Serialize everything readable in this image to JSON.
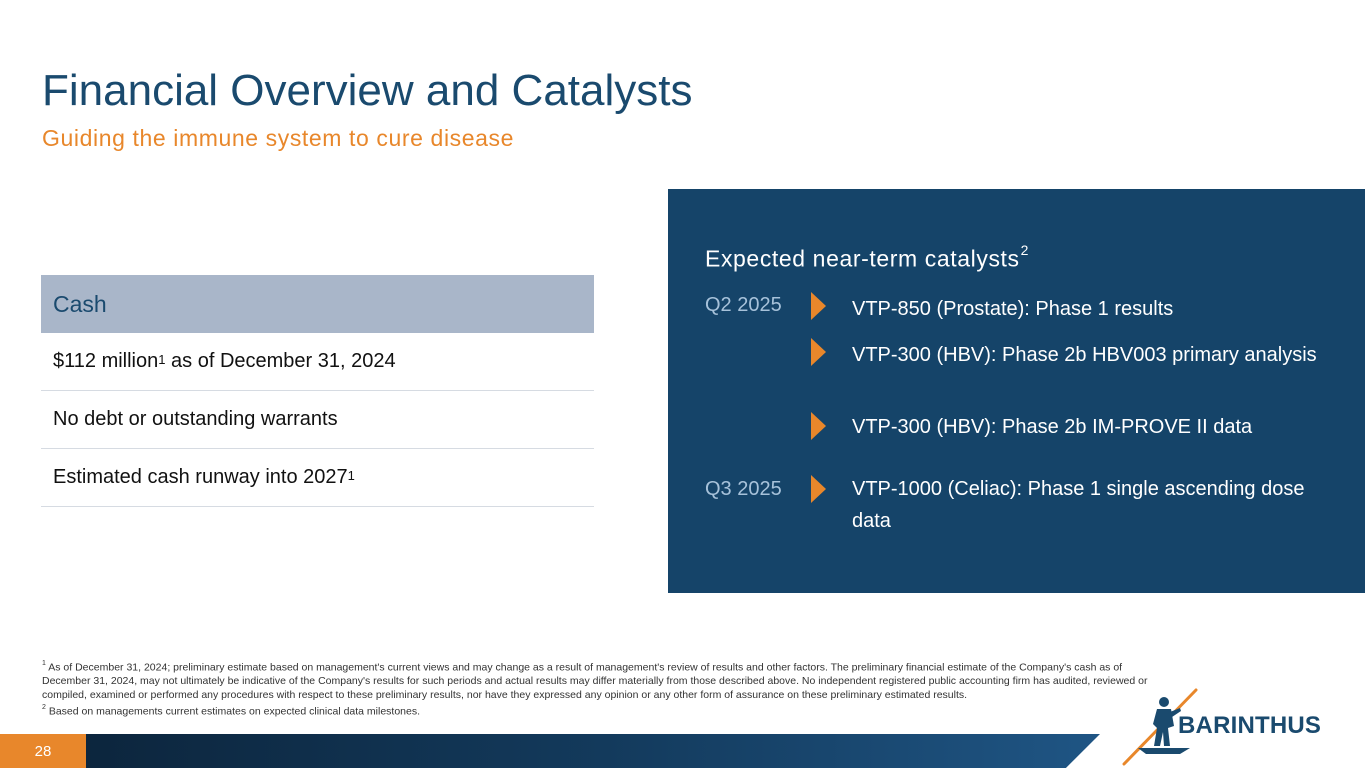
{
  "slide": {
    "title": "Financial Overview and Catalysts",
    "subtitle": "Guiding the immune system to cure disease",
    "page_number": "28"
  },
  "cash": {
    "header": "Cash",
    "rows": [
      {
        "text": "$112 million",
        "sup": "1",
        "suffix": " as of December 31, 2024"
      },
      {
        "text": "No debt or outstanding warrants"
      },
      {
        "text": "Estimated cash runway into 2027",
        "sup": "1"
      }
    ]
  },
  "catalysts": {
    "heading": "Expected near-term catalysts",
    "heading_sup": "2",
    "quarters": [
      "Q2 2025",
      "Q3 2025"
    ],
    "items": [
      "VTP-850 (Prostate): Phase 1 results",
      "VTP-300 (HBV): Phase 2b HBV003 primary analysis",
      "VTP-300 (HBV): Phase 2b IM-PROVE II data",
      "VTP-1000 (Celiac): Phase 1 single ascending dose data"
    ]
  },
  "footnotes": {
    "note1_marker": "1",
    "note1": "As of December 31, 2024; preliminary estimate based on management's current views and may change as a result of management's review of results and other factors. The preliminary financial estimate of the Company's cash as of December 31, 2024, may not ultimately be indicative of the Company's results for such periods and actual results may differ materially from those described above. No independent registered public accounting firm has audited, reviewed or compiled, examined or performed any procedures with respect to these preliminary results, nor have they expressed any opinion or any other form of assurance on these preliminary estimated results.",
    "note2_marker": "2",
    "note2": "Based on managements current estimates on expected clinical data milestones."
  },
  "logo": {
    "name": "BARINTHUS"
  },
  "colors": {
    "navy": "#154469",
    "title_blue": "#1a4a6e",
    "orange": "#e8872b",
    "table_header": "#a9b6c9",
    "quarter_label": "#a7c2da"
  }
}
